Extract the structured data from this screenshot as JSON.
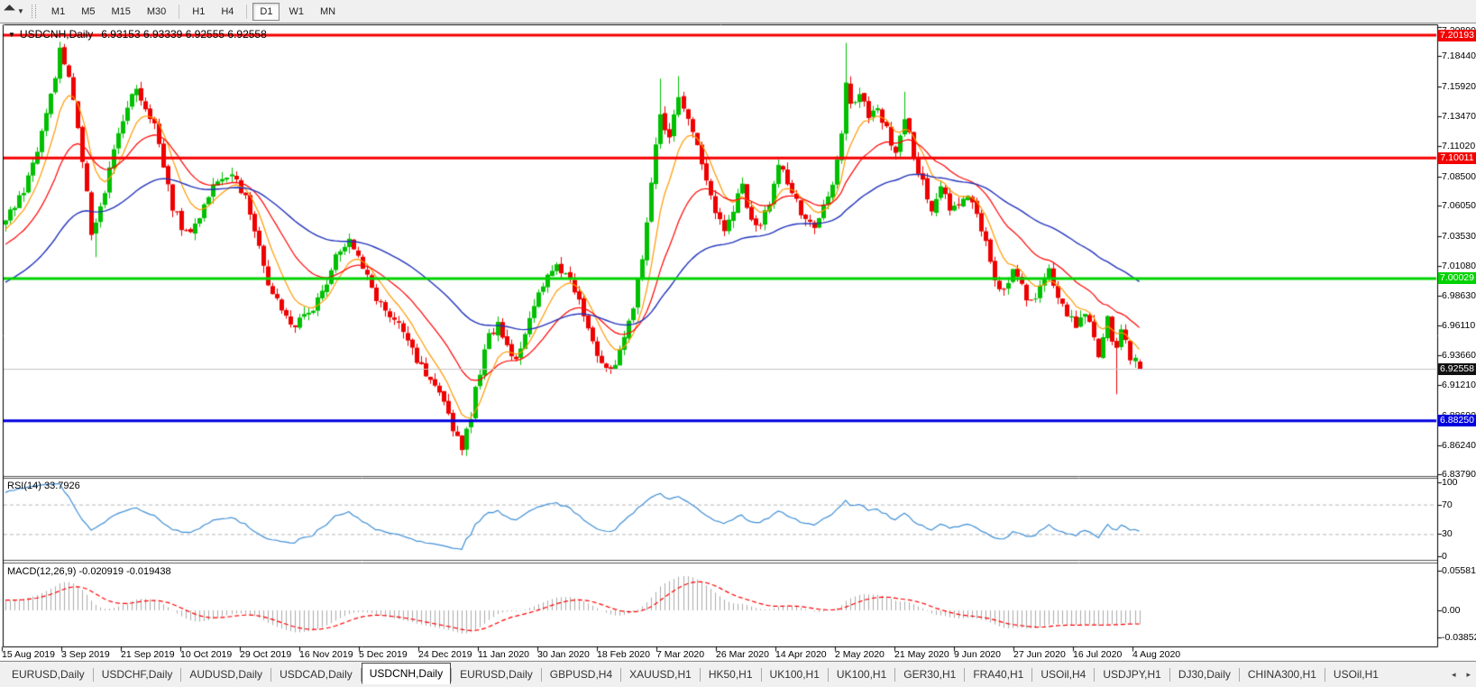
{
  "toolbar": {
    "timeframes": [
      "M1",
      "M5",
      "M15",
      "M30",
      "H1",
      "H4",
      "D1",
      "W1",
      "MN"
    ],
    "active_timeframe": "D1",
    "group_breaks": [
      3,
      5
    ]
  },
  "chart": {
    "title": "USDCNH,Daily",
    "quote_ohlc": "6.93153 6.93339 6.92555 6.92558",
    "price_axis_labels": [
      "7.20890",
      "7.18440",
      "7.15920",
      "7.13470",
      "7.11020",
      "7.08500",
      "7.06050",
      "7.03530",
      "7.01080",
      "6.98630",
      "6.96110",
      "6.93660",
      "6.91210",
      "6.88690",
      "6.86240",
      "6.83790"
    ],
    "date_labels": [
      "15 Aug 2019",
      "3 Sep 2019",
      "21 Sep 2019",
      "10 Oct 2019",
      "29 Oct 2019",
      "16 Nov 2019",
      "5 Dec 2019",
      "24 Dec 2019",
      "11 Jan 2020",
      "30 Jan 2020",
      "18 Feb 2020",
      "7 Mar 2020",
      "26 Mar 2020",
      "14 Apr 2020",
      "2 May 2020",
      "21 May 2020",
      "9 Jun 2020",
      "27 Jun 2020",
      "16 Jul 2020",
      "4 Aug 2020"
    ],
    "level_lines": [
      {
        "price": 7.20193,
        "label": "7.20193",
        "color": "#f50000",
        "thickness": 3
      },
      {
        "price": 7.10011,
        "label": "7.10011",
        "color": "#f50000",
        "thickness": 3
      },
      {
        "price": 7.00029,
        "label": "7.00029",
        "color": "#00d300",
        "thickness": 3
      },
      {
        "price": 6.8825,
        "label": "6.88250",
        "color": "#0000e0",
        "thickness": 3
      }
    ],
    "current_price": {
      "price": 6.92558,
      "label": "6.92558",
      "box_color": "#111111",
      "line_color": "#c4c4c4"
    },
    "candle_up_color": "#00bf00",
    "candle_down_color": "#ee0000",
    "ma_colors": {
      "fast": "#ff9900",
      "medium": "#ff0000",
      "slow": "#2233bb"
    },
    "last_candle": {
      "open": 6.93153,
      "high": 6.93339,
      "low": 6.92555,
      "close": 6.92558
    },
    "price_path": {
      "pre_anchors": [
        [
          -160,
          6.872
        ],
        [
          -130,
          6.902
        ],
        [
          -100,
          6.888
        ],
        [
          -70,
          6.915
        ],
        [
          -45,
          6.948
        ],
        [
          -25,
          6.998
        ],
        [
          -10,
          7.032
        ],
        [
          -1,
          7.044
        ]
      ],
      "anchors": [
        [
          0,
          7.048
        ],
        [
          3,
          7.065
        ],
        [
          6,
          7.095
        ],
        [
          9,
          7.135
        ],
        [
          12,
          7.188
        ],
        [
          14,
          7.168
        ],
        [
          17,
          7.1
        ],
        [
          19,
          7.038
        ],
        [
          22,
          7.075
        ],
        [
          26,
          7.135
        ],
        [
          29,
          7.158
        ],
        [
          33,
          7.128
        ],
        [
          37,
          7.06
        ],
        [
          40,
          7.036
        ],
        [
          44,
          7.06
        ],
        [
          47,
          7.085
        ],
        [
          50,
          7.09
        ],
        [
          52,
          7.075
        ],
        [
          54,
          7.055
        ],
        [
          56,
          7.03
        ],
        [
          58,
          6.995
        ],
        [
          61,
          6.972
        ],
        [
          64,
          6.962
        ],
        [
          67,
          6.972
        ],
        [
          70,
          6.988
        ],
        [
          73,
          7.022
        ],
        [
          76,
          7.032
        ],
        [
          79,
          7.008
        ],
        [
          82,
          6.985
        ],
        [
          85,
          6.968
        ],
        [
          88,
          6.955
        ],
        [
          91,
          6.932
        ],
        [
          94,
          6.913
        ],
        [
          96,
          6.902
        ],
        [
          98,
          6.888
        ],
        [
          100,
          6.868
        ],
        [
          101,
          6.862
        ],
        [
          103,
          6.888
        ],
        [
          105,
          6.925
        ],
        [
          107,
          6.952
        ],
        [
          109,
          6.965
        ],
        [
          111,
          6.945
        ],
        [
          113,
          6.935
        ],
        [
          116,
          6.965
        ],
        [
          119,
          6.995
        ],
        [
          122,
          7.012
        ],
        [
          125,
          7.0
        ],
        [
          127,
          6.985
        ],
        [
          129,
          6.962
        ],
        [
          131,
          6.938
        ],
        [
          133,
          6.922
        ],
        [
          135,
          6.928
        ],
        [
          137,
          6.948
        ],
        [
          139,
          6.975
        ],
        [
          141,
          7.02
        ],
        [
          143,
          7.08
        ],
        [
          145,
          7.135
        ],
        [
          147,
          7.12
        ],
        [
          149,
          7.148
        ],
        [
          151,
          7.13
        ],
        [
          153,
          7.115
        ],
        [
          155,
          7.08
        ],
        [
          157,
          7.055
        ],
        [
          159,
          7.042
        ],
        [
          161,
          7.06
        ],
        [
          163,
          7.075
        ],
        [
          165,
          7.05
        ],
        [
          167,
          7.042
        ],
        [
          169,
          7.065
        ],
        [
          171,
          7.098
        ],
        [
          173,
          7.08
        ],
        [
          175,
          7.062
        ],
        [
          177,
          7.048
        ],
        [
          179,
          7.038
        ],
        [
          181,
          7.06
        ],
        [
          183,
          7.075
        ],
        [
          185,
          7.12
        ],
        [
          186,
          7.16
        ],
        [
          187,
          7.145
        ],
        [
          189,
          7.155
        ],
        [
          191,
          7.13
        ],
        [
          193,
          7.14
        ],
        [
          195,
          7.125
        ],
        [
          197,
          7.1
        ],
        [
          199,
          7.135
        ],
        [
          201,
          7.1
        ],
        [
          203,
          7.08
        ],
        [
          205,
          7.06
        ],
        [
          207,
          7.075
        ],
        [
          209,
          7.06
        ],
        [
          211,
          7.06
        ],
        [
          213,
          7.072
        ],
        [
          215,
          7.055
        ],
        [
          217,
          7.03
        ],
        [
          219,
          7.002
        ],
        [
          221,
          6.988
        ],
        [
          223,
          7.005
        ],
        [
          225,
          6.992
        ],
        [
          227,
          6.978
        ],
        [
          229,
          6.995
        ],
        [
          231,
          7.008
        ],
        [
          233,
          6.988
        ],
        [
          235,
          6.972
        ],
        [
          237,
          6.958
        ],
        [
          239,
          6.975
        ],
        [
          241,
          6.952
        ],
        [
          242,
          6.938
        ],
        [
          243,
          6.955
        ],
        [
          244,
          6.968
        ],
        [
          245,
          6.952
        ],
        [
          246,
          6.942
        ],
        [
          247,
          6.955
        ],
        [
          248,
          6.948
        ],
        [
          249,
          6.932
        ],
        [
          250,
          6.938
        ],
        [
          251,
          6.92558
        ]
      ],
      "wick_overrides": [
        {
          "i": 12,
          "high": 7.1965
        },
        {
          "i": 20,
          "low": 7.018
        },
        {
          "i": 101,
          "low": 6.8545
        },
        {
          "i": 145,
          "high": 7.166
        },
        {
          "i": 149,
          "high": 7.168
        },
        {
          "i": 186,
          "high": 7.1955
        },
        {
          "i": 199,
          "high": 7.155
        },
        {
          "i": 246,
          "low": 6.9045
        }
      ]
    }
  },
  "rsi": {
    "label": "RSI(14)",
    "value": "33.7926",
    "period": 14,
    "levels": [
      70,
      30
    ],
    "axis_labels": [
      "100",
      "70",
      "30",
      "0"
    ],
    "axis_values": [
      100,
      70,
      30,
      0
    ],
    "line_color": "#3f8fd6"
  },
  "macd": {
    "label": "MACD(12,26,9)",
    "values": "-0.020919 -0.019438",
    "fast": 12,
    "slow": 26,
    "signal": 9,
    "axis_labels": [
      "0.05581",
      "0.00",
      "-0.038524"
    ],
    "axis_values": [
      0.05581,
      0.0,
      -0.038524
    ],
    "hist_color": "#ababab",
    "signal_color": "#ff0000"
  },
  "tabs": {
    "items": [
      "EURUSD,Daily",
      "USDCHF,Daily",
      "AUDUSD,Daily",
      "USDCAD,Daily",
      "USDCNH,Daily",
      "EURUSD,Daily",
      "GBPUSD,H4",
      "XAUUSD,H1",
      "HK50,H1",
      "UK100,H1",
      "UK100,H1",
      "GER30,H1",
      "FRA40,H1",
      "USOil,H4",
      "USDJPY,H1",
      "DJ30,Daily",
      "CHINA300,H1",
      "USOil,H1"
    ],
    "active_index": 4,
    "left_arrow": "◂",
    "right_arrow": "▸"
  }
}
